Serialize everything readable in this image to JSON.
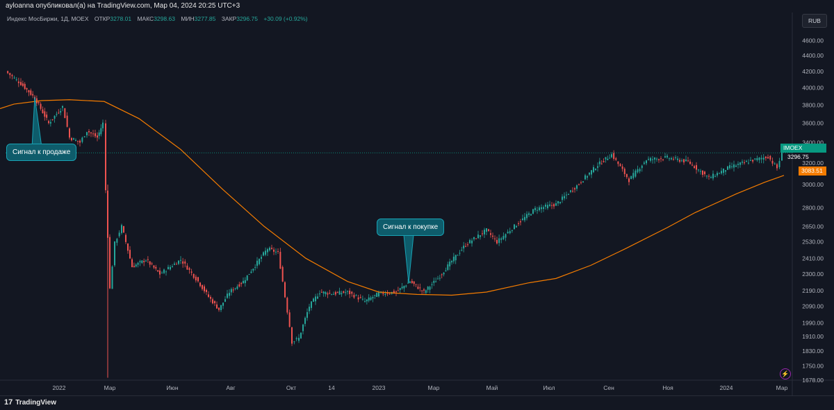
{
  "header": {
    "publisher": "ayloanna опубликовал(а) на TradingView.com, Мар 04, 2024 20:25 UTC+3"
  },
  "legend": {
    "title": "Индекс МосБиржи, 1Д, MOEX",
    "open_label": "ОТКР",
    "open_value": "3278.01",
    "high_label": "МАКС",
    "high_value": "3298.63",
    "low_label": "МИН",
    "low_value": "3277.85",
    "close_label": "ЗАКР",
    "close_value": "3296.75",
    "change": "+30.09 (+0.92%)"
  },
  "currency": "RUB",
  "price_tags": {
    "symbol": "IMOEX",
    "last": "3296.75",
    "ma": "3083.51",
    "last_color": "#089981",
    "ma_color": "#f57c00"
  },
  "annotations": {
    "sell": "Сигнал к продаже",
    "buy": "Сигнал к покупке"
  },
  "branding": {
    "logo_mark": "17",
    "name": "TradingView"
  },
  "chart_data": {
    "type": "line",
    "x_ticks": [
      "2022",
      "Мар",
      "Июн",
      "Авг",
      "Окт",
      "14",
      "2023",
      "Мар",
      "Май",
      "Июл",
      "Сен",
      "Ноя",
      "2024",
      "Мар"
    ],
    "y_ticks": [
      1678.0,
      1750.0,
      1830.0,
      1910.0,
      1990.0,
      2090.0,
      2190.0,
      2300.0,
      2410.0,
      2530.0,
      2650.0,
      2800.0,
      3000.0,
      3200.0,
      3400.0,
      3600.0,
      3800.0,
      4000.0,
      4200.0,
      4400.0,
      4600.0
    ],
    "ylim": [
      1678,
      4800
    ],
    "last_price": 3296.75,
    "series": [
      {
        "name": "",
        "color": "#f57c00",
        "x": [
          0,
          20,
          60,
          100,
          150,
          200,
          260,
          320,
          380,
          440,
          500,
          545,
          600,
          650,
          700,
          760,
          800,
          850,
          900,
          960,
          1000,
          1060,
          1100,
          1128
        ],
        "values": [
          3760,
          3810,
          3850,
          3860,
          3840,
          3650,
          3330,
          2960,
          2650,
          2410,
          2250,
          2180,
          2165,
          2160,
          2180,
          2240,
          2270,
          2360,
          2480,
          2640,
          2760,
          2920,
          3020,
          3083
        ]
      },
      {
        "name": "",
        "color": "#d1d4dc",
        "x": [
          8,
          30,
          50,
          70,
          90,
          100,
          115,
          125,
          140,
          148,
          152,
          158,
          165,
          175,
          190,
          210,
          230,
          260,
          285,
          300,
          315,
          330,
          350,
          370,
          385,
          400,
          410,
          420,
          430,
          445,
          460,
          480,
          500,
          525,
          545,
          570,
          590,
          610,
          630,
          650,
          670,
          700,
          715,
          740,
          770,
          800,
          830,
          860,
          880,
          905,
          930,
          960,
          990,
          1020,
          1050,
          1080,
          1105,
          1118,
          1125
        ],
        "values": [
          4200,
          4050,
          3880,
          3600,
          3780,
          3450,
          3400,
          3520,
          3450,
          3600,
          2950,
          2200,
          2520,
          2650,
          2350,
          2400,
          2300,
          2400,
          2250,
          2150,
          2070,
          2180,
          2250,
          2380,
          2480,
          2450,
          2150,
          1880,
          1900,
          2090,
          2180,
          2170,
          2180,
          2120,
          2170,
          2180,
          2250,
          2180,
          2270,
          2390,
          2510,
          2620,
          2530,
          2650,
          2790,
          2830,
          2990,
          3180,
          3280,
          3040,
          3230,
          3250,
          3210,
          3060,
          3160,
          3220,
          3260,
          3150,
          3296
        ]
      }
    ]
  }
}
